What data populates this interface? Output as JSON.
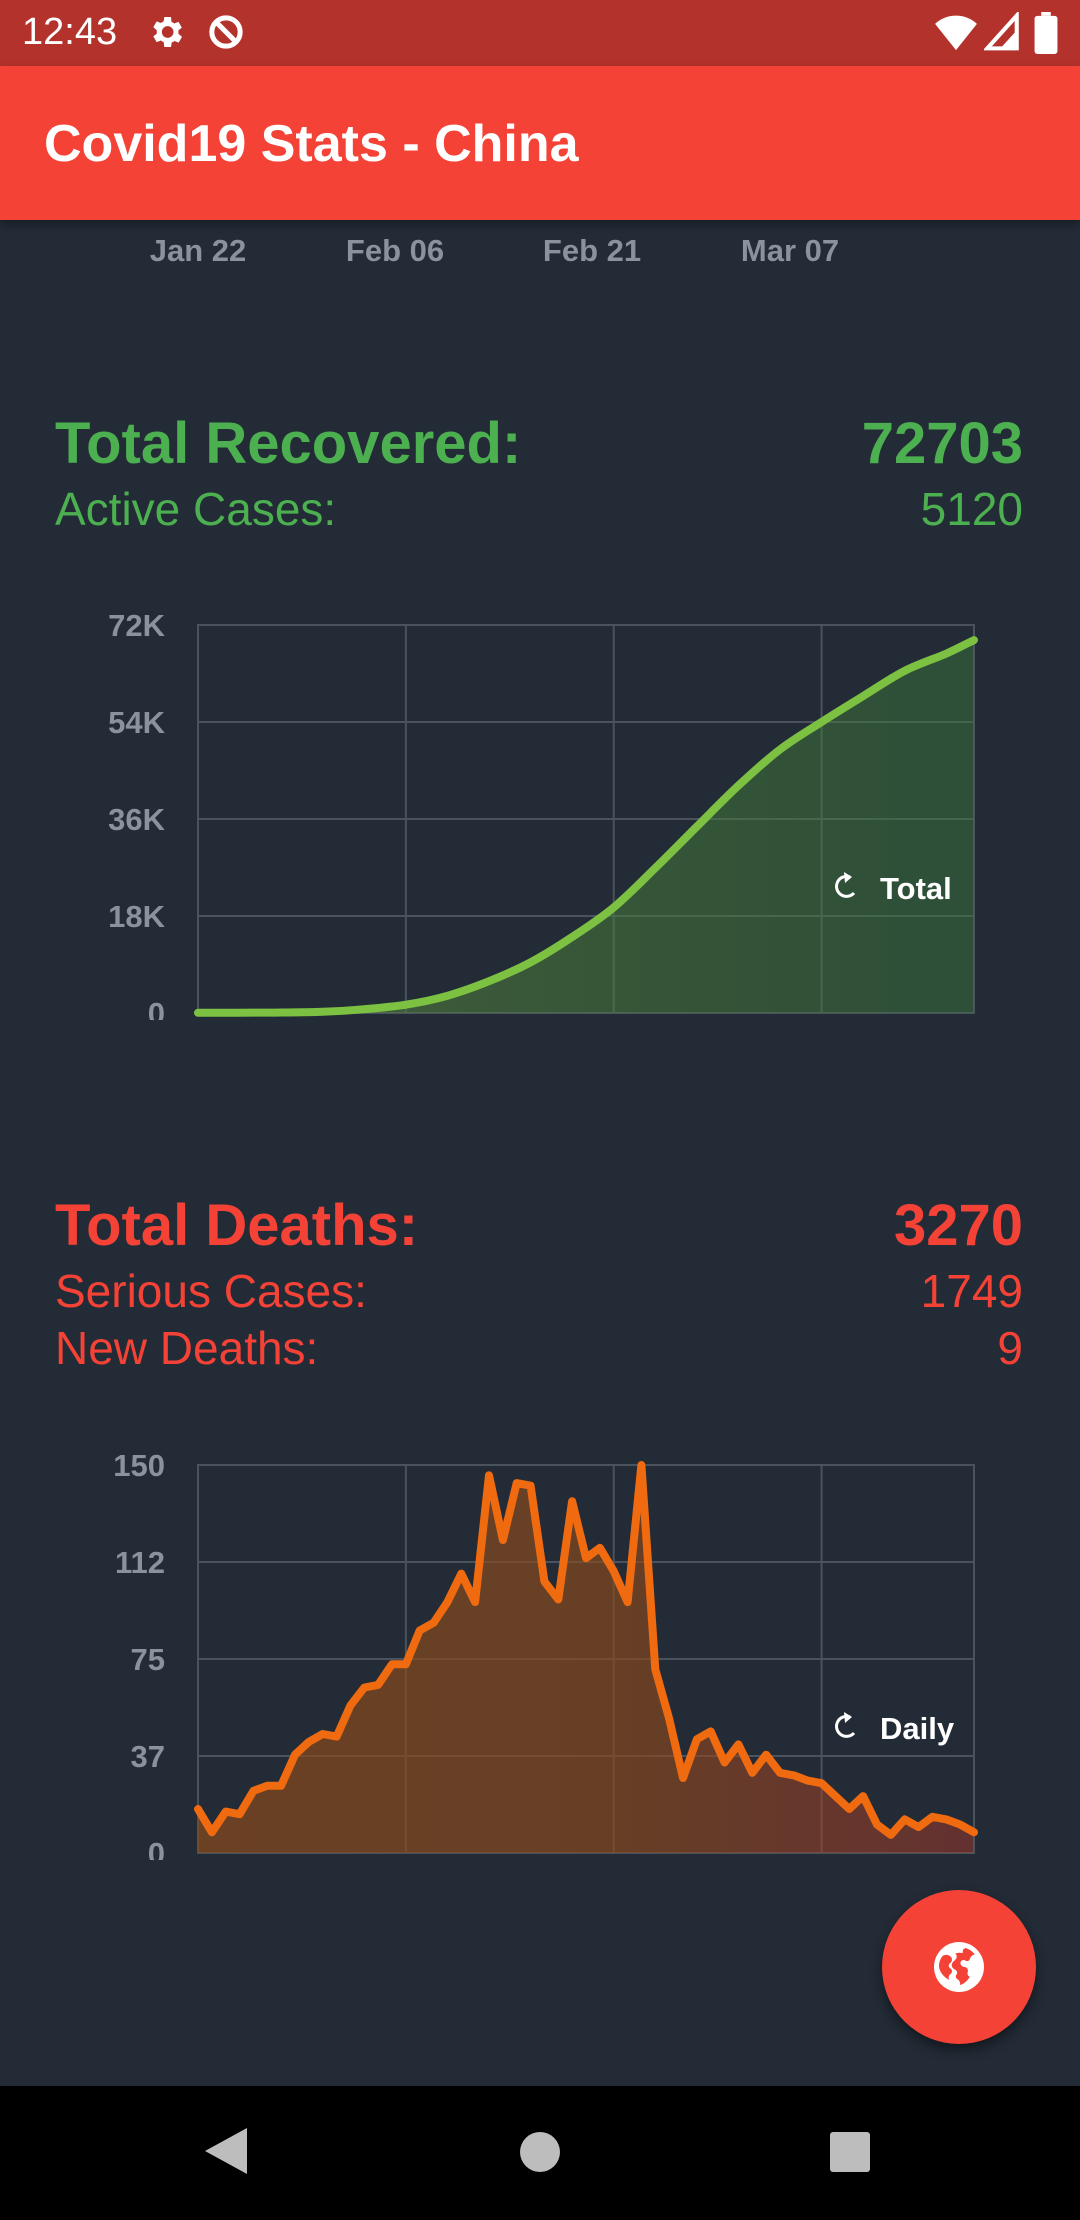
{
  "status_bar": {
    "time": "12:43",
    "icons": [
      "settings-icon",
      "data-saver-icon",
      "wifi-icon",
      "signal-icon",
      "battery-icon"
    ]
  },
  "app_bar": {
    "title": "Covid19 Stats - China"
  },
  "colors": {
    "accent": "#f44336",
    "status_bar": "#b3322b",
    "background": "#232b36",
    "recovered": "#4caf50",
    "recovered_line": "#7cc142",
    "deaths": "#f44336",
    "deaths_line": "#f06a10"
  },
  "top_chart_axis": {
    "x_ticks": [
      "Jan 22",
      "Feb 06",
      "Feb 21",
      "Mar 07"
    ]
  },
  "recovered": {
    "total_label": "Total Recovered:",
    "total_value": "72703",
    "active_label": "Active Cases:",
    "active_value": "5120",
    "toggle_label": "Total",
    "toggle_icon": "refresh-icon"
  },
  "deaths": {
    "total_label": "Total Deaths:",
    "total_value": "3270",
    "serious_label": "Serious Cases:",
    "serious_value": "1749",
    "new_label": "New Deaths:",
    "new_value": "9",
    "toggle_label": "Daily",
    "toggle_icon": "refresh-icon"
  },
  "fab": {
    "icon": "globe-icon"
  },
  "nav_bar": {
    "icons": [
      "back-icon",
      "home-icon",
      "recents-icon"
    ]
  },
  "chart_data": [
    {
      "type": "area",
      "series": [
        {
          "x": [
            "Jan 22",
            "Jan 25",
            "Jan 28",
            "Jan 31",
            "Feb 03",
            "Feb 06",
            "Feb 09",
            "Feb 12",
            "Feb 15",
            "Feb 18",
            "Feb 21",
            "Feb 24",
            "Feb 27",
            "Mar 01",
            "Mar 04",
            "Mar 07",
            "Mar 10",
            "Mar 13",
            "Mar 16",
            "Mar 18"
          ],
          "values": [
            28,
            49,
            90,
            220,
            700,
            1540,
            3200,
            5900,
            9400,
            14100,
            19600,
            26900,
            34600,
            42200,
            48900,
            54000,
            58800,
            63500,
            66700,
            69200
          ]
        }
      ],
      "y_ticks": [
        "0",
        "18K",
        "36K",
        "54K",
        "72K"
      ],
      "x_ticks": [
        "Jan 22",
        "Feb 06",
        "Feb 21",
        "Mar 07"
      ],
      "ylim": [
        0,
        72000
      ],
      "grid": true
    },
    {
      "type": "area",
      "series": [
        {
          "x": [
            "Jan 22",
            "Jan 23",
            "Jan 24",
            "Jan 25",
            "Jan 26",
            "Jan 27",
            "Jan 28",
            "Jan 29",
            "Jan 30",
            "Jan 31",
            "Feb 01",
            "Feb 02",
            "Feb 03",
            "Feb 04",
            "Feb 05",
            "Feb 06",
            "Feb 07",
            "Feb 08",
            "Feb 09",
            "Feb 10",
            "Feb 11",
            "Feb 12",
            "Feb 13",
            "Feb 14",
            "Feb 15",
            "Feb 16",
            "Feb 17",
            "Feb 18",
            "Feb 19",
            "Feb 20",
            "Feb 21",
            "Feb 22",
            "Feb 23",
            "Feb 24",
            "Feb 25",
            "Feb 26",
            "Feb 27",
            "Feb 28",
            "Feb 29",
            "Mar 01",
            "Mar 02",
            "Mar 03",
            "Mar 04",
            "Mar 05",
            "Mar 06",
            "Mar 07",
            "Mar 08",
            "Mar 09",
            "Mar 10",
            "Mar 11",
            "Mar 12",
            "Mar 13",
            "Mar 14",
            "Mar 15",
            "Mar 16",
            "Mar 17",
            "Mar 18"
          ],
          "values": [
            17,
            8,
            16,
            15,
            24,
            26,
            26,
            38,
            43,
            46,
            45,
            57,
            64,
            65,
            73,
            73,
            86,
            89,
            97,
            108,
            97,
            146,
            121,
            143,
            142,
            105,
            98,
            136,
            114,
            118,
            109,
            97,
            150,
            71,
            52,
            29,
            44,
            47,
            35,
            42,
            31,
            38,
            31,
            30,
            28,
            27,
            22,
            17,
            22,
            11,
            7,
            13,
            10,
            14,
            13,
            11,
            8
          ]
        }
      ],
      "y_ticks": [
        "0",
        "37",
        "75",
        "112",
        "150"
      ],
      "x_ticks": [
        "Jan 22",
        "Feb 06",
        "Feb 21",
        "Mar 07"
      ],
      "ylim": [
        0,
        150
      ],
      "grid": true
    }
  ]
}
